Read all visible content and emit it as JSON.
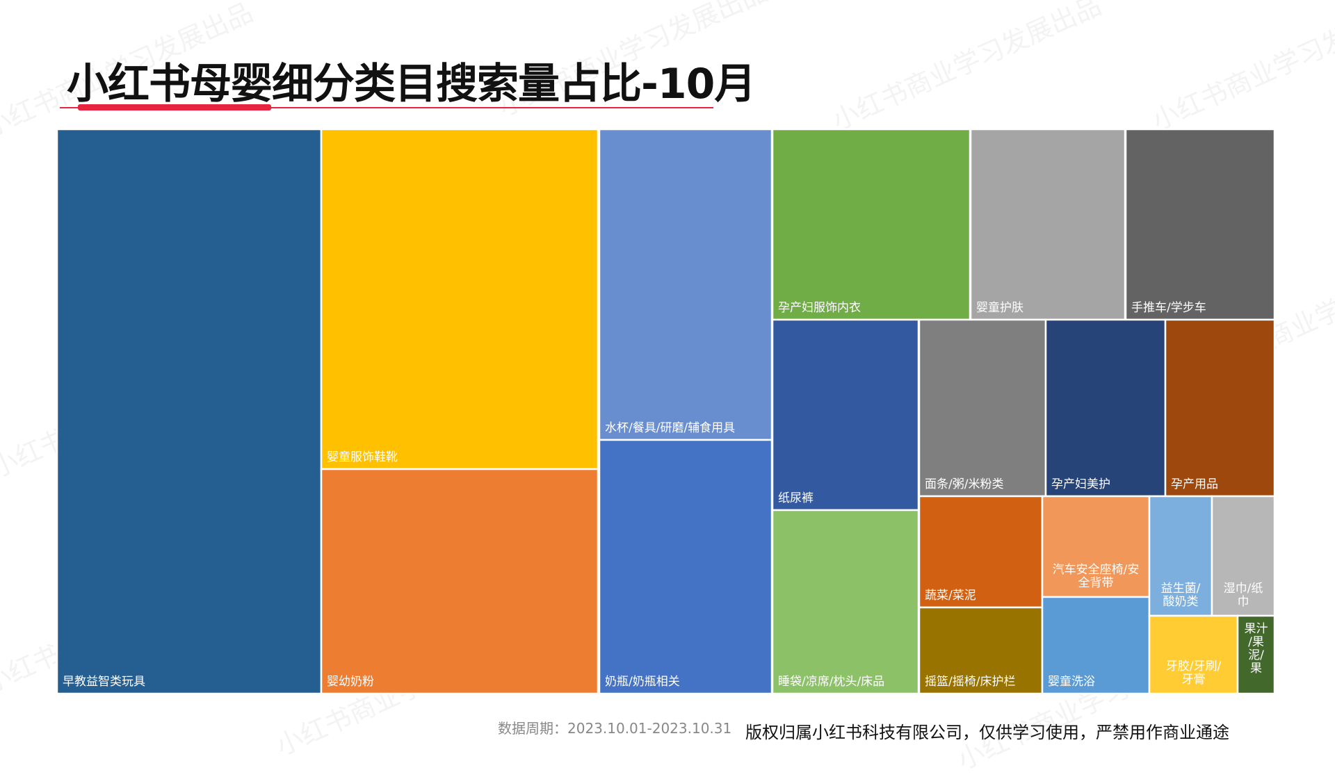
{
  "title": "小红书母婴细分类目搜索量占比-10月",
  "footer": {
    "period": "数据周期：2023.10.01-2023.10.31",
    "copyright": "版权归属小红书科技有限公司，仅供学习使用，严禁用作商业通途"
  },
  "watermark_text": "小红书商业学习发展出品",
  "chart_data": {
    "type": "treemap",
    "title": "小红书母婴细分类目搜索量占比-10月",
    "unit": "share of search volume (approx. %)",
    "items": [
      {
        "label": "早教益智类玩具",
        "value": 17.5,
        "color": "#255e91"
      },
      {
        "label": "婴童服饰鞋靴",
        "value": 11.0,
        "color": "#ffc000"
      },
      {
        "label": "婴幼奶粉",
        "value": 7.0,
        "color": "#ed7d31"
      },
      {
        "label": "水杯/餐具/研磨/辅食用具",
        "value": 6.0,
        "color": "#698ed0"
      },
      {
        "label": "奶瓶/奶瓶相关",
        "value": 5.3,
        "color": "#4472c4"
      },
      {
        "label": "孕产妇服饰内衣",
        "value": 4.3,
        "color": "#70ad47"
      },
      {
        "label": "婴童护肤",
        "value": 3.3,
        "color": "#a5a5a5"
      },
      {
        "label": "手推车/学步车",
        "value": 3.2,
        "color": "#636363"
      },
      {
        "label": "纸尿裤",
        "value": 3.0,
        "color": "#335aa1"
      },
      {
        "label": "睡袋/凉席/枕头/床品",
        "value": 3.2,
        "color": "#8cc168"
      },
      {
        "label": "面条/粥/米粉类",
        "value": 2.4,
        "color": "#7f7f7f"
      },
      {
        "label": "孕产妇美护",
        "value": 2.3,
        "color": "#264478"
      },
      {
        "label": "孕产用品",
        "value": 2.1,
        "color": "#9e480e"
      },
      {
        "label": "蔬菜/菜泥",
        "value": 1.4,
        "color": "#d26012"
      },
      {
        "label": "摇篮/摇椅/床护栏",
        "value": 1.2,
        "color": "#997300"
      },
      {
        "label": "汽车安全座椅/安全背带",
        "value": 1.3,
        "color": "#f1975a"
      },
      {
        "label": "婴童洗浴",
        "value": 1.2,
        "color": "#5b9bd5"
      },
      {
        "label": "益生菌/酸奶类",
        "value": 0.8,
        "color": "#7cafdd"
      },
      {
        "label": "湿巾/纸巾",
        "value": 0.8,
        "color": "#b7b7b7"
      },
      {
        "label": "牙胶/牙刷/牙膏",
        "value": 0.6,
        "color": "#ffcd33"
      },
      {
        "label": "果汁/果泥/果",
        "value": 0.3,
        "color": "#43682b"
      }
    ]
  }
}
